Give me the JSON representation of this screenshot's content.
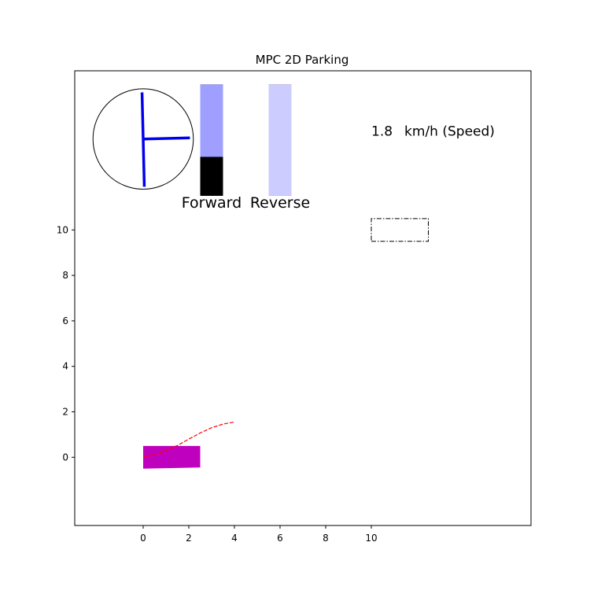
{
  "chart_data": {
    "type": "scatter",
    "title": "MPC 2D Parking",
    "xlabel": "",
    "ylabel": "",
    "xlim": [
      -3,
      17
    ],
    "ylim": [
      -3,
      17
    ],
    "xticks": [
      0,
      2,
      4,
      6,
      8,
      10
    ],
    "yticks": [
      0,
      2,
      4,
      6,
      8,
      10
    ],
    "grid": false,
    "colors": {
      "vehicle": "#bf00bf",
      "trajectory": "#ff0000",
      "steering": "#0000ee",
      "forward_pedal": "#9f9fff",
      "reverse_pedal": "#ccccff",
      "pedal_empty": "#000000",
      "target": "#000000"
    },
    "trajectory": {
      "x": [
        0.0,
        0.5,
        1.0,
        1.5,
        2.0,
        2.5,
        3.0,
        3.5,
        4.0
      ],
      "y": [
        0.0,
        0.12,
        0.3,
        0.52,
        0.8,
        1.07,
        1.3,
        1.46,
        1.55
      ]
    },
    "vehicle": {
      "corners_x": [
        0.0,
        2.5,
        2.5,
        0.0
      ],
      "corners_y": [
        -0.5,
        -0.45,
        0.5,
        0.5
      ]
    },
    "parking_target": {
      "corners_x": [
        10.0,
        12.5,
        12.5,
        10.0
      ],
      "corners_y": [
        9.5,
        9.5,
        10.5,
        10.5
      ]
    },
    "steering_wheel": {
      "center": [
        0.0,
        14.0
      ],
      "spokes_end_x": [
        -0.05,
        0.05,
        2.05
      ],
      "spokes_end_y": [
        16.05,
        11.9,
        14.05
      ]
    },
    "pedals": {
      "forward": {
        "label": "Forward",
        "level": 0.65,
        "x": 3,
        "y_bottom": 11.5,
        "height": 4.9
      },
      "reverse": {
        "label": "Reverse",
        "level": 1.0,
        "x": 6,
        "y_bottom": 11.5,
        "height": 4.9
      }
    },
    "speed": {
      "value": "1.8",
      "unit": "km/h (Speed)"
    }
  }
}
